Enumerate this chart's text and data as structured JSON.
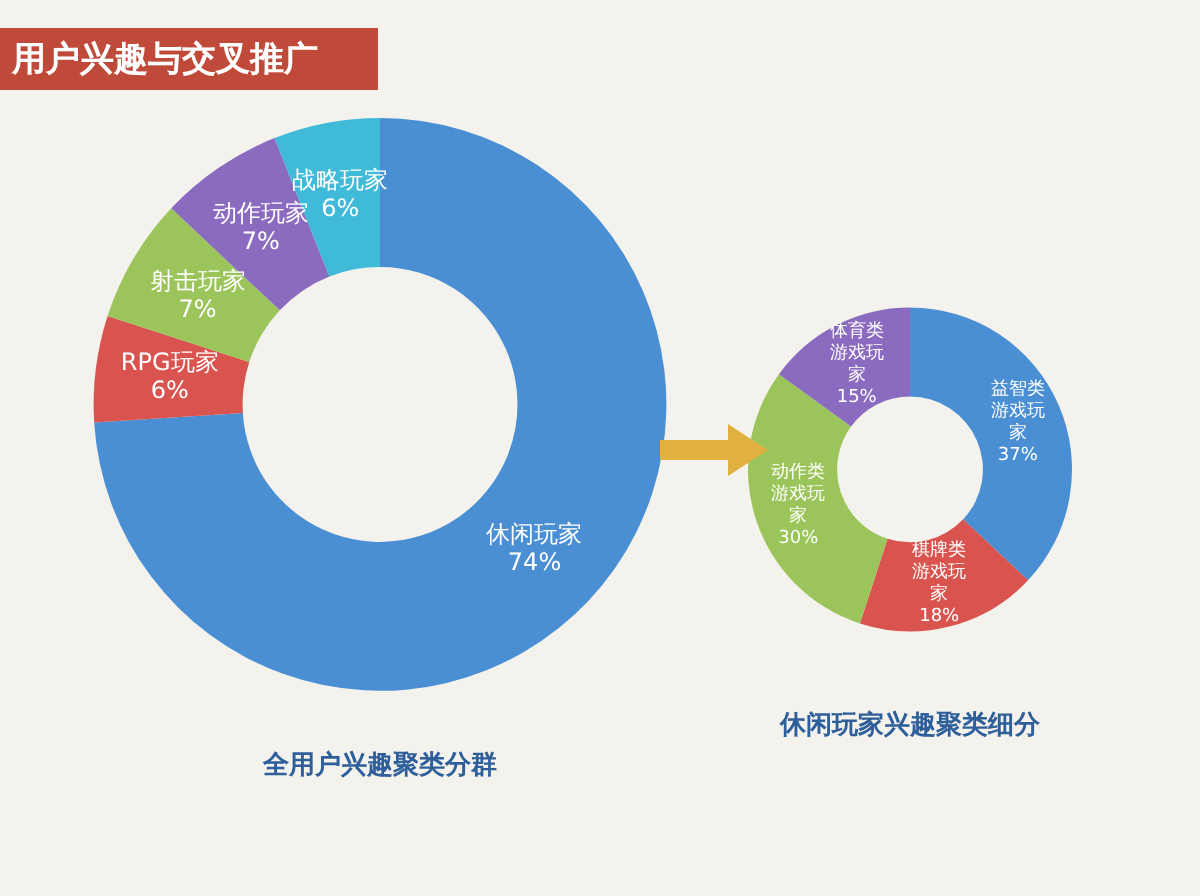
{
  "chart_data": [
    {
      "type": "donut",
      "title": "全用户兴趣聚类分群",
      "annotations": [
        "用户兴趣与交叉推广"
      ],
      "categories": [
        "休闲玩家",
        "RPG玩家",
        "射击玩家",
        "动作玩家",
        "战略玩家"
      ],
      "values": [
        74,
        6,
        7,
        7,
        6
      ],
      "value_labels": [
        "74%",
        "6%",
        "7%",
        "7%",
        "6%"
      ],
      "colors": [
        "#4a8fd4",
        "#d9534f",
        "#9bc55a",
        "#8a6bbf",
        "#3fbad8"
      ],
      "legend": false
    },
    {
      "type": "donut",
      "title": "休闲玩家兴趣聚类细分",
      "categories": [
        "益智类游戏玩家",
        "棋牌类游戏玩家",
        "动作类游戏玩家",
        "体育类游戏玩家"
      ],
      "values": [
        37,
        18,
        30,
        15
      ],
      "value_labels": [
        "37%",
        "18%",
        "30%",
        "15%"
      ],
      "colors": [
        "#4a8fd4",
        "#d9534f",
        "#9bc55a",
        "#8a6bbf"
      ],
      "legend": false
    }
  ]
}
